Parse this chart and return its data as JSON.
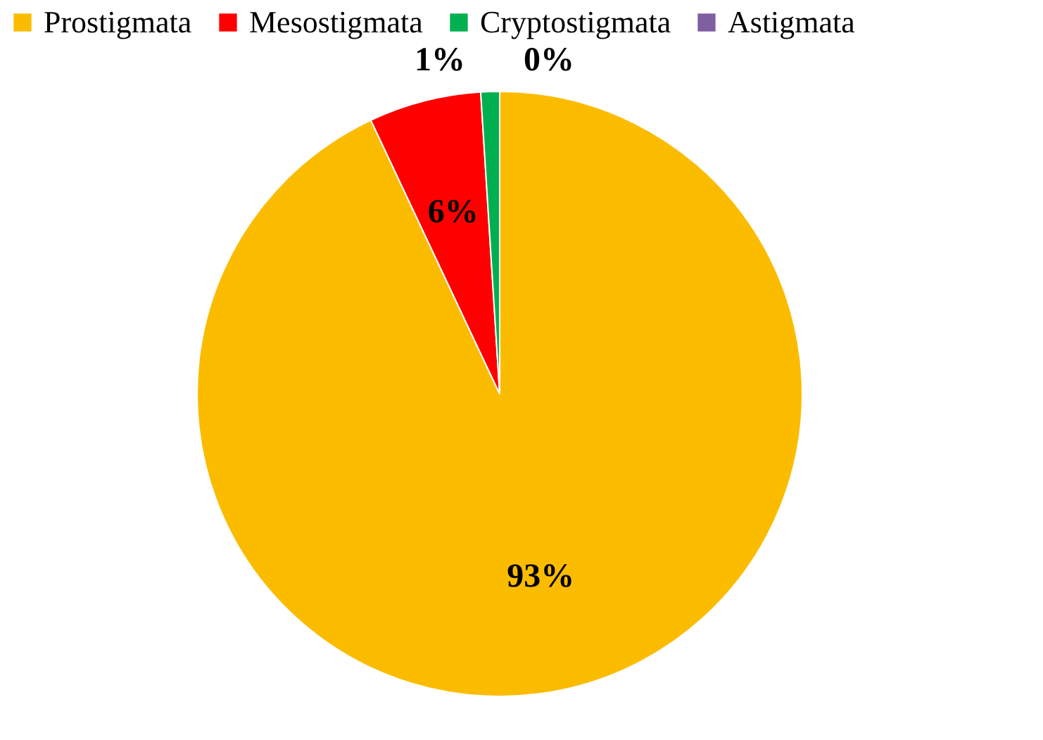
{
  "chart_data": {
    "type": "pie",
    "categories": [
      "Prostigmata",
      "Mesostigmata",
      "Cryptostigmata",
      "Astigmata"
    ],
    "values": [
      93,
      6,
      1,
      0
    ],
    "colors": [
      "#fbbc00",
      "#ff0000",
      "#00b050",
      "#7f5fa0"
    ],
    "value_labels": [
      "93%",
      "6%",
      "1%",
      "0%"
    ],
    "legend": "top"
  }
}
